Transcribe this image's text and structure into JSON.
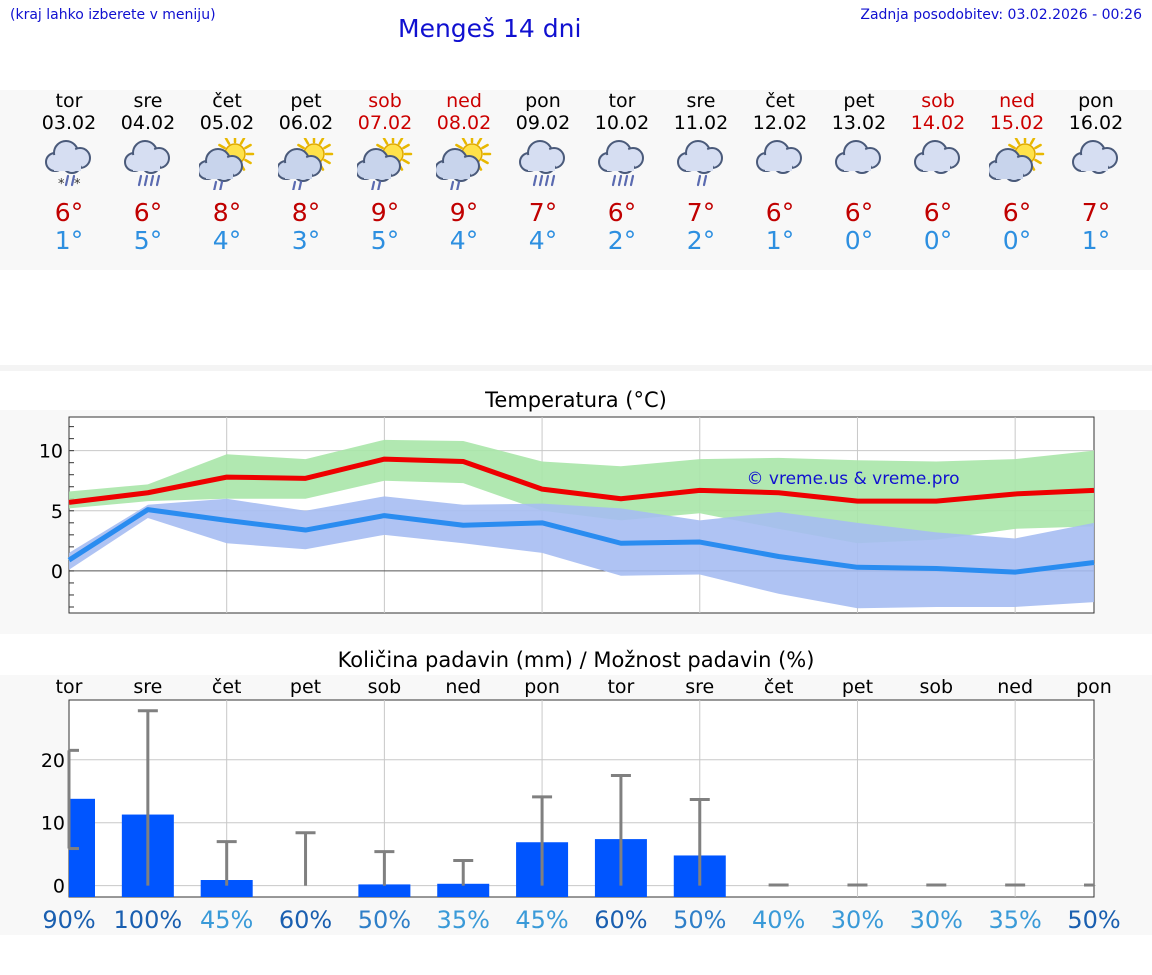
{
  "header": {
    "hint": "(kraj lahko izberete v meniju)",
    "title": "Mengeš 14 dni",
    "updated": "Zadnja posodobitev: 03.02.2026 - 00:26"
  },
  "days": [
    {
      "name": "tor",
      "date": "03.02",
      "weekend": false,
      "icon": "cloud-snow-rain-icon",
      "tmax": "6°",
      "tmin": "1°"
    },
    {
      "name": "sre",
      "date": "04.02",
      "weekend": false,
      "icon": "cloud-rain-icon",
      "tmax": "6°",
      "tmin": "5°"
    },
    {
      "name": "čet",
      "date": "05.02",
      "weekend": false,
      "icon": "sun-cloud-rain-icon",
      "tmax": "8°",
      "tmin": "4°"
    },
    {
      "name": "pet",
      "date": "06.02",
      "weekend": false,
      "icon": "sun-cloud-rain-icon",
      "tmax": "8°",
      "tmin": "3°"
    },
    {
      "name": "sob",
      "date": "07.02",
      "weekend": true,
      "icon": "sun-cloud-rain-icon",
      "tmax": "9°",
      "tmin": "5°"
    },
    {
      "name": "ned",
      "date": "08.02",
      "weekend": true,
      "icon": "sun-cloud-rain-icon",
      "tmax": "9°",
      "tmin": "4°"
    },
    {
      "name": "pon",
      "date": "09.02",
      "weekend": false,
      "icon": "cloud-rain-icon",
      "tmax": "7°",
      "tmin": "4°"
    },
    {
      "name": "tor",
      "date": "10.02",
      "weekend": false,
      "icon": "cloud-rain-icon",
      "tmax": "6°",
      "tmin": "2°"
    },
    {
      "name": "sre",
      "date": "11.02",
      "weekend": false,
      "icon": "cloud-rain-light-icon",
      "tmax": "7°",
      "tmin": "2°"
    },
    {
      "name": "čet",
      "date": "12.02",
      "weekend": false,
      "icon": "cloud-icon",
      "tmax": "6°",
      "tmin": "1°"
    },
    {
      "name": "pet",
      "date": "13.02",
      "weekend": false,
      "icon": "cloud-icon",
      "tmax": "6°",
      "tmin": "0°"
    },
    {
      "name": "sob",
      "date": "14.02",
      "weekend": true,
      "icon": "cloud-icon",
      "tmax": "6°",
      "tmin": "0°"
    },
    {
      "name": "ned",
      "date": "15.02",
      "weekend": true,
      "icon": "sun-cloud-icon",
      "tmax": "6°",
      "tmin": "0°"
    },
    {
      "name": "pon",
      "date": "16.02",
      "weekend": false,
      "icon": "cloud-icon",
      "tmax": "7°",
      "tmin": "1°"
    }
  ],
  "colors": {
    "max": "#c00000",
    "min": "#2d8fe0",
    "weekend": "#cc0000",
    "title": "#1010d0"
  },
  "chart_data": [
    {
      "type": "line",
      "title": "Temperatura (°C)",
      "watermark": "© vreme.us & vreme.pro",
      "ylim": [
        -3.5,
        12.8
      ],
      "yticks": [
        0,
        5,
        10
      ],
      "x": [
        0,
        0.5,
        1,
        1.5,
        2,
        2.5,
        3,
        3.5,
        4,
        4.5,
        5,
        5.5,
        6,
        6.5,
        7,
        7.5,
        8,
        8.5,
        9,
        9.5,
        10,
        10.5,
        11,
        11.5,
        12,
        12.5,
        13
      ],
      "series": [
        {
          "name": "max",
          "color": "#ee0000",
          "values": [
            5.7,
            6.5,
            7.8,
            7.7,
            9.3,
            9.1,
            6.8,
            6.0,
            6.7,
            6.5,
            5.8,
            5.8,
            6.4,
            6.7
          ],
          "x": [
            0,
            1,
            2,
            3,
            4,
            5,
            6,
            7,
            8,
            9,
            10,
            11,
            12,
            13
          ],
          "band_low": [
            5.2,
            5.8,
            6.0,
            6.0,
            7.5,
            7.3,
            5.0,
            4.2,
            4.8,
            3.5,
            2.3,
            2.6,
            3.5,
            3.7
          ],
          "band_high": [
            6.6,
            7.2,
            9.7,
            9.3,
            10.9,
            10.8,
            9.1,
            8.7,
            9.3,
            9.4,
            9.2,
            9.1,
            9.3,
            10.0
          ],
          "band_color": "#a9e6a9"
        },
        {
          "name": "min",
          "color": "#2a8cf0",
          "values": [
            0.9,
            5.1,
            4.2,
            3.4,
            4.6,
            3.8,
            4.0,
            2.3,
            2.4,
            1.2,
            0.3,
            0.2,
            -0.1,
            0.7
          ],
          "x": [
            0,
            1,
            2,
            3,
            4,
            5,
            6,
            7,
            8,
            9,
            10,
            11,
            12,
            13
          ],
          "band_low": [
            0.1,
            4.4,
            2.3,
            1.8,
            3.0,
            2.3,
            1.5,
            -0.4,
            -0.3,
            -1.9,
            -3.1,
            -3.0,
            -3.0,
            -2.6
          ],
          "band_high": [
            1.5,
            5.5,
            6.0,
            5.0,
            6.2,
            5.5,
            5.6,
            5.2,
            4.2,
            4.9,
            4.0,
            3.2,
            2.7,
            4.0
          ],
          "band_color": "#a6bcf2"
        }
      ]
    },
    {
      "type": "bar",
      "title": "Količina padavin (mm) / Možnost padavin (%)",
      "categories": [
        "tor",
        "sre",
        "čet",
        "pet",
        "sob",
        "ned",
        "pon",
        "tor",
        "sre",
        "čet",
        "pet",
        "sob",
        "ned",
        "pon"
      ],
      "values": [
        13.8,
        11.3,
        0.9,
        0,
        0.2,
        0.3,
        6.9,
        7.4,
        4.8,
        0,
        0,
        0,
        0,
        0
      ],
      "error_low": [
        5.9,
        0,
        0,
        0,
        0,
        0,
        0,
        0,
        0,
        0,
        0,
        0,
        0,
        0
      ],
      "error_high": [
        21.5,
        27.8,
        7.0,
        8.4,
        5.4,
        4.0,
        14.1,
        17.5,
        13.7,
        0.1,
        0.1,
        0.1,
        0.1,
        0.1
      ],
      "ylim": [
        -1.8,
        29.5
      ],
      "yticks": [
        0,
        10,
        20
      ],
      "chance": [
        "90%",
        "100%",
        "45%",
        "60%",
        "50%",
        "35%",
        "45%",
        "60%",
        "50%",
        "40%",
        "30%",
        "30%",
        "35%",
        "50%"
      ],
      "chance_colors": [
        "#1a5fb0",
        "#1a5fb0",
        "#3a9ad8",
        "#1a5fb0",
        "#2f7fc8",
        "#3a9ad8",
        "#3a9ad8",
        "#1a5fb0",
        "#2f7fc8",
        "#3a9ad8",
        "#3a9ad8",
        "#3a9ad8",
        "#3a9ad8",
        "#1a5fb0"
      ],
      "bar_color": "#0055ff",
      "error_color": "#808080"
    }
  ]
}
